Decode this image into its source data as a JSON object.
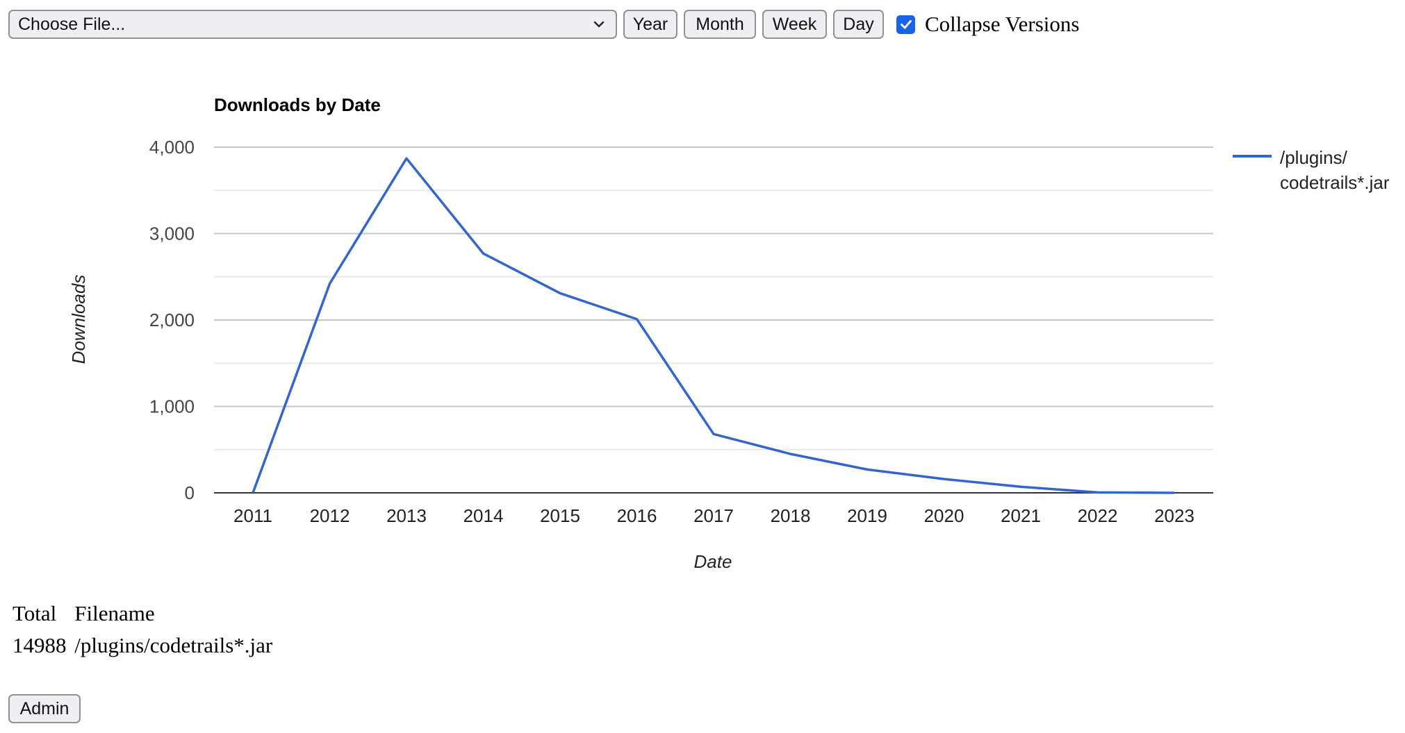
{
  "toolbar": {
    "file_select": {
      "value": "Choose File..."
    },
    "buttons": {
      "year": "Year",
      "month": "Month",
      "week": "Week",
      "day": "Day"
    },
    "collapse_versions": {
      "label": "Collapse Versions",
      "checked": true
    }
  },
  "chart_data": {
    "type": "line",
    "title": "Downloads by Date",
    "xlabel": "Date",
    "ylabel": "Downloads",
    "x": [
      "2011",
      "2012",
      "2013",
      "2014",
      "2015",
      "2016",
      "2017",
      "2018",
      "2019",
      "2020",
      "2021",
      "2022",
      "2023"
    ],
    "series": [
      {
        "name": "/plugins/codetrails*.jar",
        "legend_lines": [
          "/plugins/",
          "codetrails*.jar"
        ],
        "color": "#3366cc",
        "values": [
          0,
          2420,
          3870,
          2770,
          2310,
          2010,
          680,
          450,
          270,
          160,
          70,
          5,
          0
        ]
      }
    ],
    "ylim": [
      0,
      4000
    ],
    "yticks": [
      "0",
      "1,000",
      "2,000",
      "3,000",
      "4,000"
    ],
    "ytick_values": [
      0,
      1000,
      2000,
      3000,
      4000
    ],
    "grid": true,
    "legend": "right"
  },
  "summary": {
    "headers": {
      "total": "Total",
      "filename": "Filename"
    },
    "rows": [
      {
        "total": "14988",
        "filename": "/plugins/codetrails*.jar"
      }
    ]
  },
  "admin": {
    "label": "Admin"
  }
}
